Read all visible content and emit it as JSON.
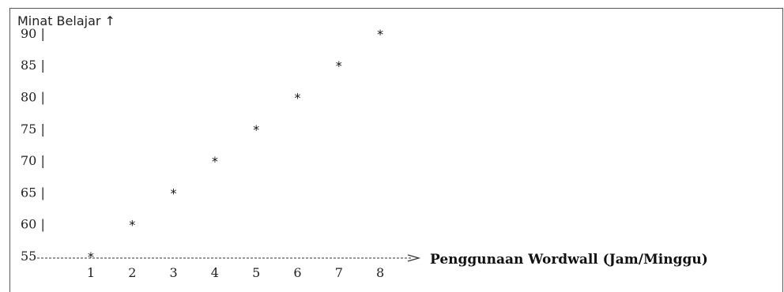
{
  "chart_data": {
    "type": "scatter",
    "title": "",
    "ylabel": "Minat Belajar ↑",
    "xlabel": "Penggunaan Wordwall (Jam/Minggu)",
    "marker": "*",
    "x": [
      1,
      2,
      3,
      4,
      5,
      6,
      7,
      8
    ],
    "y": [
      55,
      60,
      65,
      70,
      75,
      80,
      85,
      90
    ],
    "x_ticks": [
      "1",
      "2",
      "3",
      "4",
      "5",
      "6",
      "7",
      "8"
    ],
    "y_ticks": [
      "90 |",
      "85 |",
      "80 |",
      "75 |",
      "70 |",
      "65 |",
      "60 |",
      "55"
    ],
    "y_tick_values": [
      90,
      85,
      80,
      75,
      70,
      65,
      60,
      55
    ],
    "x_range": [
      1,
      8
    ],
    "y_range": [
      55,
      90
    ],
    "grid": false,
    "legend": "none",
    "colors": {
      "text": "#222222",
      "frame": "#555555",
      "axis": "#333333"
    }
  }
}
